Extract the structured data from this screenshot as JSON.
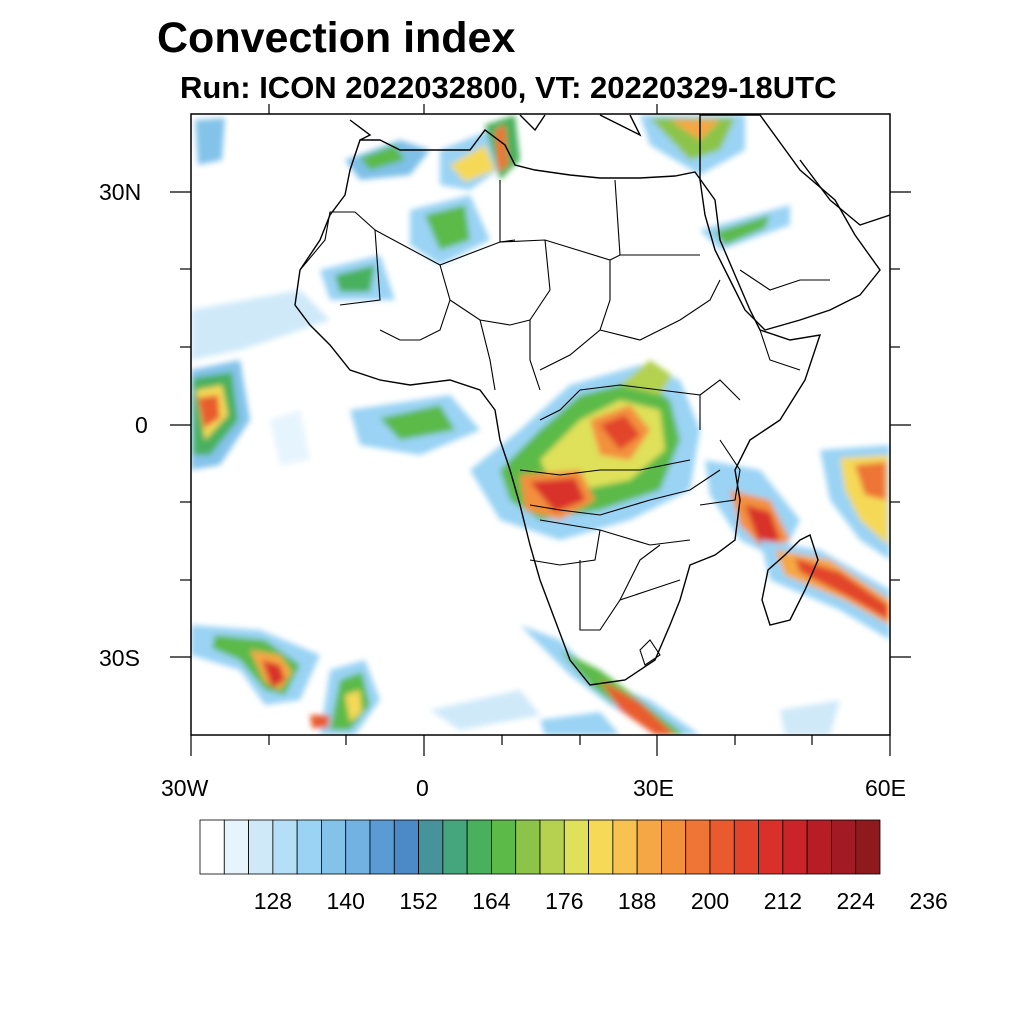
{
  "title": "Convection index",
  "subtitle": "Run: ICON 2022032800,  VT: 20220329-18UTC",
  "axes": {
    "lat_labels": [
      "30N",
      "0",
      "30S"
    ],
    "lon_labels": [
      "30W",
      "0",
      "30E",
      "60E"
    ]
  },
  "colorbar": {
    "labels": [
      "128",
      "140",
      "152",
      "164",
      "176",
      "188",
      "200",
      "212",
      "224",
      "236"
    ],
    "colors": [
      "#ffffff",
      "#e6f4fd",
      "#cfe9f9",
      "#b4dff6",
      "#9ad3f4",
      "#83c3ea",
      "#72b2e2",
      "#5a9bd5",
      "#4c89c7",
      "#47939b",
      "#45a57c",
      "#49b15d",
      "#5cba49",
      "#8cc44a",
      "#b4d14f",
      "#dfe15a",
      "#f5d957",
      "#f7c24f",
      "#f6a745",
      "#f3903c",
      "#ee7534",
      "#e95b2e",
      "#e2442b",
      "#d9312a",
      "#ca2328",
      "#b71d25",
      "#a21a23",
      "#8f1a1e"
    ]
  },
  "map": {
    "region": "Africa and surrounding oceans",
    "lon_range": [
      -30,
      60
    ],
    "lat_range": [
      -40,
      40
    ],
    "features": [
      "country borders",
      "coastlines",
      "convection index shading"
    ]
  }
}
